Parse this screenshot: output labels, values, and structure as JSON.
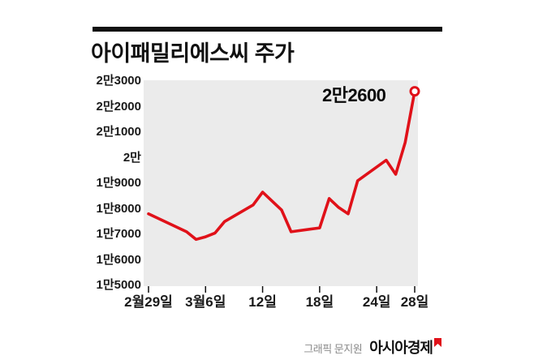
{
  "title": "아이패밀리에스씨 주가",
  "annotation": "2만2600",
  "footer": {
    "credit": "그래픽 문지원",
    "logo": "아시아경제"
  },
  "colors": {
    "line": "#e01119",
    "plot_bg": "#ebebeb",
    "text": "#111111",
    "credit_text": "#8a8a8a",
    "logo_mark": "#e01119"
  },
  "chart_data": {
    "type": "line",
    "title": "아이패밀리에스씨 주가",
    "unit": "원",
    "ylim": [
      15000,
      23000
    ],
    "x_axis_span_days": [
      0,
      28
    ],
    "grid": false,
    "legend": "none",
    "plot_background": "#ebebeb",
    "line_color": "#e01119",
    "y_ticks": [
      {
        "label": "2만3000",
        "value": 23000
      },
      {
        "label": "2만2000",
        "value": 22000
      },
      {
        "label": "2만1000",
        "value": 21000
      },
      {
        "label": "2만",
        "value": 20000
      },
      {
        "label": "1만9000",
        "value": 19000
      },
      {
        "label": "1만8000",
        "value": 18000
      },
      {
        "label": "1만7000",
        "value": 17000
      },
      {
        "label": "1만6000",
        "value": 16000
      },
      {
        "label": "1만5000",
        "value": 15000
      }
    ],
    "x_ticks": [
      {
        "label": "2월29일",
        "day": 0
      },
      {
        "label": "3월6일",
        "day": 6
      },
      {
        "label": "12일",
        "day": 12
      },
      {
        "label": "18일",
        "day": 18
      },
      {
        "label": "24일",
        "day": 24
      },
      {
        "label": "28일",
        "day": 28
      }
    ],
    "series": [
      {
        "name": "아이패밀리에스씨 주가",
        "last_value_label": "2만2600",
        "last_value": 22600,
        "points": [
          {
            "day": 0,
            "value": 17800
          },
          {
            "day": 4,
            "value": 17100
          },
          {
            "day": 5,
            "value": 16800
          },
          {
            "day": 6,
            "value": 16900
          },
          {
            "day": 7,
            "value": 17050
          },
          {
            "day": 8,
            "value": 17500
          },
          {
            "day": 11,
            "value": 18150
          },
          {
            "day": 12,
            "value": 18650
          },
          {
            "day": 13,
            "value": 18300
          },
          {
            "day": 14,
            "value": 17950
          },
          {
            "day": 15,
            "value": 17100
          },
          {
            "day": 18,
            "value": 17250
          },
          {
            "day": 19,
            "value": 18400
          },
          {
            "day": 20,
            "value": 18050
          },
          {
            "day": 21,
            "value": 17800
          },
          {
            "day": 22,
            "value": 19100
          },
          {
            "day": 25,
            "value": 19900
          },
          {
            "day": 26,
            "value": 19350
          },
          {
            "day": 27,
            "value": 20600
          },
          {
            "day": 28,
            "value": 22600
          }
        ]
      }
    ]
  }
}
